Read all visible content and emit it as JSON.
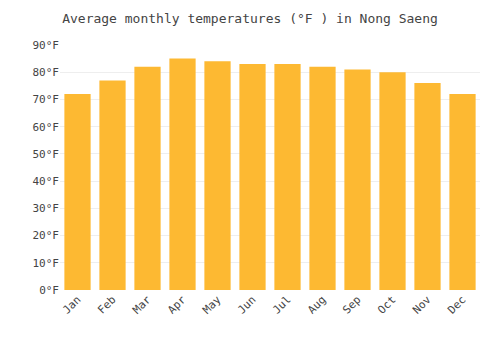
{
  "chart_data": {
    "type": "bar",
    "title": "Average monthly temperatures (°F ) in Nong Saeng",
    "categories": [
      "Jan",
      "Feb",
      "Mar",
      "Apr",
      "May",
      "Jun",
      "Jul",
      "Aug",
      "Sep",
      "Oct",
      "Nov",
      "Dec"
    ],
    "values": [
      72,
      77,
      82,
      85,
      84,
      83,
      83,
      82,
      81,
      80,
      76,
      72
    ],
    "color": "#FDB932",
    "ylim": [
      0,
      90
    ],
    "yticks": [
      {
        "value": 0,
        "label": "0°F"
      },
      {
        "value": 10,
        "label": "10°F"
      },
      {
        "value": 20,
        "label": "20°F"
      },
      {
        "value": 30,
        "label": "30°F"
      },
      {
        "value": 40,
        "label": "40°F"
      },
      {
        "value": 50,
        "label": "50°F"
      },
      {
        "value": 60,
        "label": "60°F"
      },
      {
        "value": 70,
        "label": "70°F"
      },
      {
        "value": 80,
        "label": "80°F"
      },
      {
        "value": 90,
        "label": "90°F"
      }
    ],
    "grid": true
  }
}
